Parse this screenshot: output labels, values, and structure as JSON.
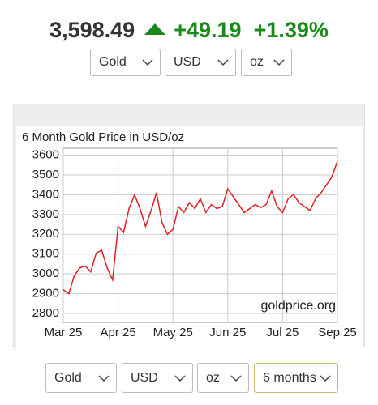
{
  "header": {
    "price": "3,598.49",
    "change": "+49.19",
    "change_percent": "+1.39%"
  },
  "top_selectors": [
    "Gold",
    "USD",
    "oz"
  ],
  "chart_data": {
    "type": "line",
    "title": "6 Month Gold Price in USD/oz",
    "categories": [
      "Mar 25",
      null,
      null,
      null,
      null,
      null,
      null,
      null,
      null,
      null,
      "Apr 25",
      null,
      null,
      null,
      null,
      null,
      null,
      null,
      null,
      null,
      "May 25",
      null,
      null,
      null,
      null,
      null,
      null,
      null,
      null,
      null,
      "Jun 25",
      null,
      null,
      null,
      null,
      null,
      null,
      null,
      null,
      null,
      "Jul 25",
      null,
      null,
      null,
      null,
      null,
      null,
      null,
      null,
      null,
      "Sep 25"
    ],
    "values": [
      2920,
      2900,
      2990,
      3030,
      3040,
      3010,
      3105,
      3120,
      3030,
      2970,
      3240,
      3210,
      3330,
      3400,
      3330,
      3240,
      3320,
      3410,
      3260,
      3200,
      3225,
      3340,
      3310,
      3360,
      3330,
      3380,
      3310,
      3350,
      3330,
      3340,
      3430,
      3390,
      3350,
      3310,
      3330,
      3350,
      3335,
      3350,
      3420,
      3340,
      3310,
      3380,
      3400,
      3360,
      3340,
      3320,
      3380,
      3410,
      3450,
      3490,
      3570
    ],
    "color": "#e02020",
    "ylim": [
      2755,
      3635
    ],
    "yticks": [
      2800,
      2900,
      3000,
      3100,
      3200,
      3300,
      3400,
      3500,
      3600
    ],
    "grid": true,
    "watermark": "goldprice.org"
  },
  "bottom_selectors": [
    "Gold",
    "USD",
    "oz",
    "6 months"
  ]
}
